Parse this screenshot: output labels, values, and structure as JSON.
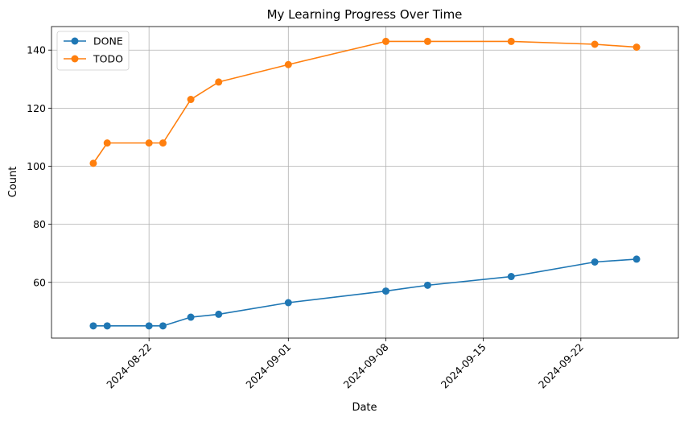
{
  "chart_data": {
    "type": "line",
    "title": "My Learning Progress Over Time",
    "xlabel": "Date",
    "ylabel": "Count",
    "x_ticks": [
      "2024-08-22",
      "2024-09-01",
      "2024-09-08",
      "2024-09-15",
      "2024-09-22"
    ],
    "y_ticks": [
      60,
      80,
      100,
      120,
      140
    ],
    "xlim": [
      "2024-08-15",
      "2024-09-29"
    ],
    "ylim": [
      40.8,
      148.1
    ],
    "grid": true,
    "legend_position": "top-left",
    "x": [
      "2024-08-18",
      "2024-08-19",
      "2024-08-22",
      "2024-08-23",
      "2024-08-25",
      "2024-08-27",
      "2024-09-01",
      "2024-09-08",
      "2024-09-11",
      "2024-09-17",
      "2024-09-23",
      "2024-09-26"
    ],
    "series": [
      {
        "name": "DONE",
        "color": "#1f77b4",
        "values": [
          45,
          45,
          45,
          45,
          48,
          49,
          53,
          57,
          59,
          62,
          67,
          68
        ]
      },
      {
        "name": "TODO",
        "color": "#ff7f0e",
        "values": [
          101,
          108,
          108,
          108,
          123,
          129,
          135,
          143,
          143,
          143,
          142,
          141
        ]
      }
    ]
  }
}
